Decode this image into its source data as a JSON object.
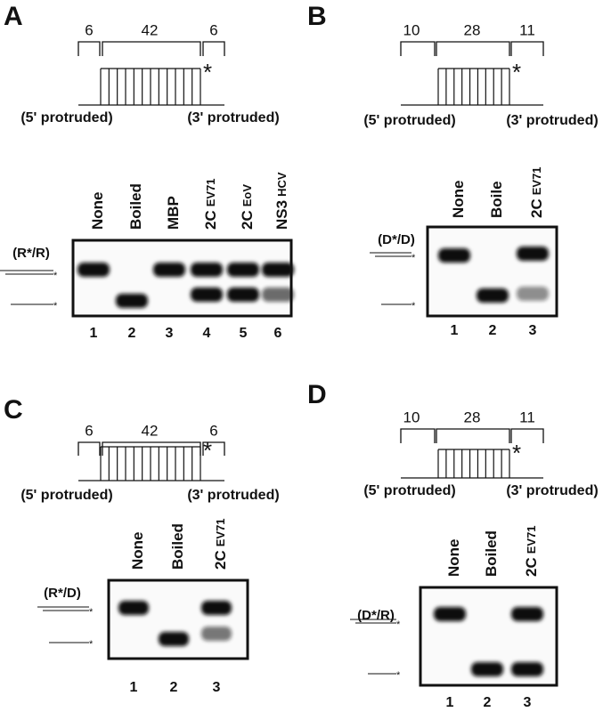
{
  "panels": [
    {
      "letter": "A",
      "brackets": [
        "6",
        "42",
        "6"
      ],
      "star": "*",
      "left_end": "(5' protruded)",
      "right_end": "(3' protruded)",
      "lanes": [
        {
          "name": "None"
        },
        {
          "name": "Boiled"
        },
        {
          "name": "MBP"
        },
        {
          "name": "2C",
          "suffix": "EV71"
        },
        {
          "name": "2C",
          "suffix": "EoV"
        },
        {
          "name": "NS3",
          "suffix": "HCV"
        }
      ],
      "substrate": "(R*/R)",
      "lane_numbers": [
        "1",
        "2",
        "3",
        "4",
        "5",
        "6"
      ]
    },
    {
      "letter": "B",
      "brackets": [
        "10",
        "28",
        "11"
      ],
      "star": "*",
      "left_end": "(5' protruded)",
      "right_end": "(3' protruded)",
      "lanes": [
        {
          "name": "None"
        },
        {
          "name": "Boile"
        },
        {
          "name": "2C",
          "suffix": "EV71"
        }
      ],
      "substrate": "(D*/D)",
      "lane_numbers": [
        "1",
        "2",
        "3"
      ]
    },
    {
      "letter": "C",
      "brackets": [
        "6",
        "42",
        "6"
      ],
      "star": "*",
      "left_end": "(5' protruded)",
      "right_end": "(3' protruded)",
      "lanes": [
        {
          "name": "None"
        },
        {
          "name": "Boiled"
        },
        {
          "name": "2C",
          "suffix": "EV71"
        }
      ],
      "substrate": "(R*/D)",
      "lane_numbers": [
        "1",
        "2",
        "3"
      ]
    },
    {
      "letter": "D",
      "brackets": [
        "10",
        "28",
        "11"
      ],
      "star": "*",
      "left_end": "(5' protruded)",
      "right_end": "(3' protruded)",
      "lanes": [
        {
          "name": "None"
        },
        {
          "name": "Boiled"
        },
        {
          "name": "2C",
          "suffix": "EV71"
        }
      ],
      "substrate": "(D*/R)",
      "lane_numbers": [
        "1",
        "2",
        "3"
      ]
    }
  ]
}
